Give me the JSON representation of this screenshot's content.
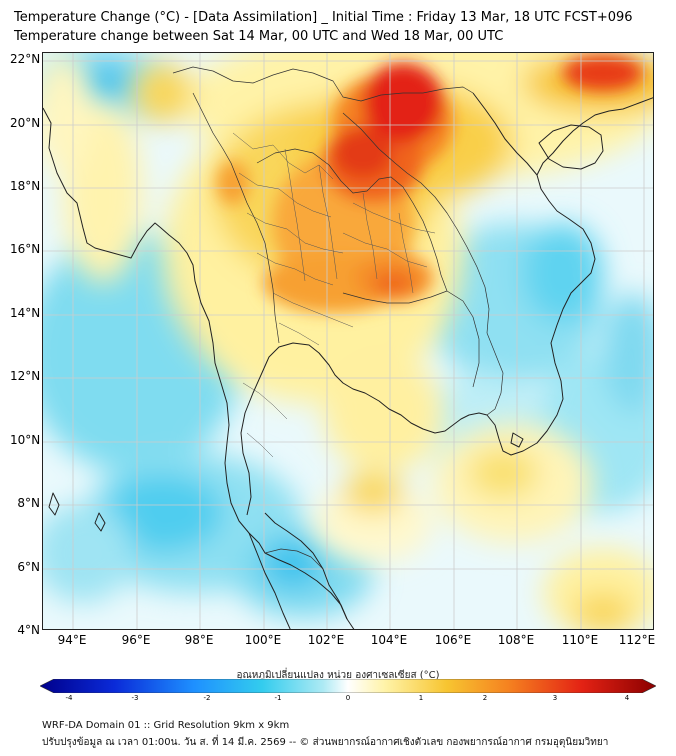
{
  "title_line1": "Temperature Change (°C) - [Data Assimilation] _ Initial Time : Friday 13 Mar, 18 UTC FCST+096",
  "title_line2": "Temperature change between Sat 14 Mar, 00 UTC and Wed 18 Mar, 00 UTC",
  "lat_labels": [
    "22°N",
    "20°N",
    "18°N",
    "16°N",
    "14°N",
    "12°N",
    "10°N",
    "8°N",
    "6°N",
    "4°N"
  ],
  "lon_labels": [
    "94°E",
    "96°E",
    "98°E",
    "100°E",
    "102°E",
    "104°E",
    "106°E",
    "108°E",
    "110°E",
    "112°E"
  ],
  "colorbar": {
    "title": "อุณหภูมิเปลี่ยนแปลง หน่วย องศาเซลเซียส (°C)",
    "min": -4,
    "max": 4,
    "tick_labels": [
      "-4",
      "-3",
      "-2",
      "-1",
      "0",
      "1",
      "2",
      "3",
      "4"
    ]
  },
  "footer_line1": "WRF-DA Domain 01 :: Grid Resolution 9km x 9km",
  "footer_line2": "ปรับปรุงข้อมูล ณ เวลา 01:00น. วัน ส. ที่ 14 มี.ค. 2569 -- © ส่วนพยากรณ์อากาศเชิงตัวเลข กองพยากรณ์อากาศ กรมอุตุนิยมวิทยา",
  "colors": {
    "cold_dark": "#00008b",
    "cold": "#1e90ff",
    "cool": "#33ccee",
    "cool_light": "#aeeaf4",
    "neutral": "#ffffff",
    "warm_light": "#fff3a8",
    "warm": "#f7c531",
    "hot": "#f58220",
    "very_hot": "#e32214",
    "extreme": "#8b0000"
  }
}
